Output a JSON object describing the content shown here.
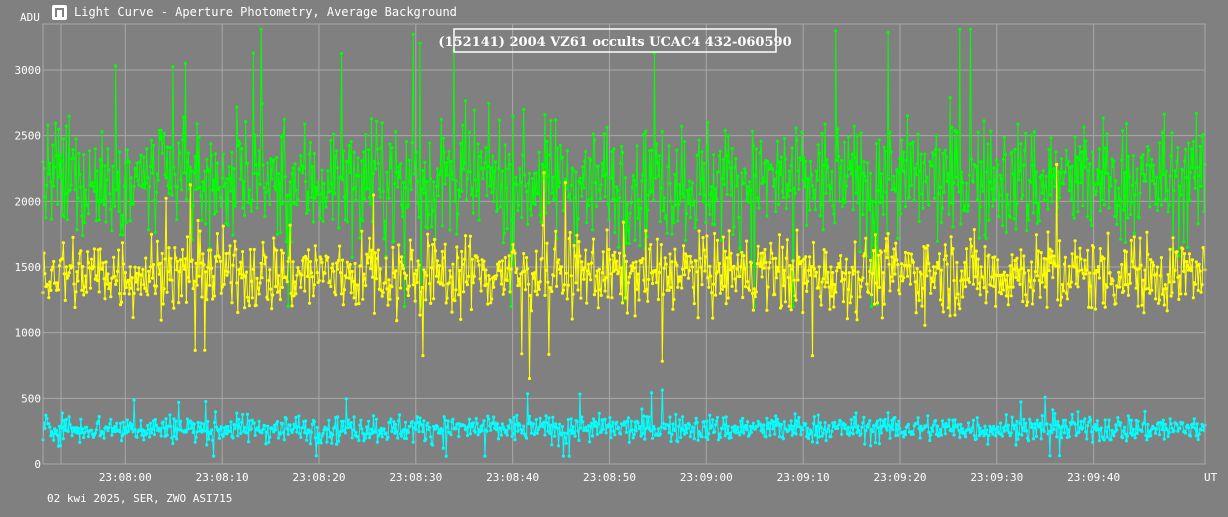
{
  "window": {
    "title": "Light Curve - Aperture Photometry, Average Background",
    "icon": "light-curve-app-icon"
  },
  "footer": "02 kwi 2025, SER, ZWO ASI715",
  "colors": {
    "background": "#808080",
    "grid": "#a8a8a8",
    "text": "#ffffff",
    "series": [
      "#00ff00",
      "#ffff00",
      "#00ffff"
    ]
  },
  "chart_data": {
    "type": "line",
    "title": "(152141) 2004 VZ61 occults UCAC4 432-060590",
    "xlabel": "UT",
    "ylabel": "ADU",
    "x_range": [
      "23:07:51.5",
      "23:09:51.5"
    ],
    "ylim": [
      0,
      3350
    ],
    "y_ticks": [
      0,
      500,
      1000,
      1500,
      2000,
      2500,
      3000
    ],
    "x_ticks": [
      "23:08:00",
      "23:08:10",
      "23:08:20",
      "23:08:30",
      "23:08:40",
      "23:08:50",
      "23:09:00",
      "23:09:10",
      "23:09:20",
      "23:09:30",
      "23:09:40"
    ],
    "grid": true,
    "legend": "none",
    "markers": true,
    "approx_points_per_series": 1200,
    "series": [
      {
        "color": "#00ff00",
        "typical_range": [
          1400,
          2700
        ],
        "approx_mean": 2150,
        "min": 1200,
        "max": 3310
      },
      {
        "color": "#ffff00",
        "typical_range": [
          1050,
          1900
        ],
        "approx_mean": 1450,
        "min": 580,
        "max": 2400
      },
      {
        "color": "#00ffff",
        "typical_range": [
          120,
          420
        ],
        "approx_mean": 270,
        "min": 60,
        "max": 590
      }
    ]
  }
}
